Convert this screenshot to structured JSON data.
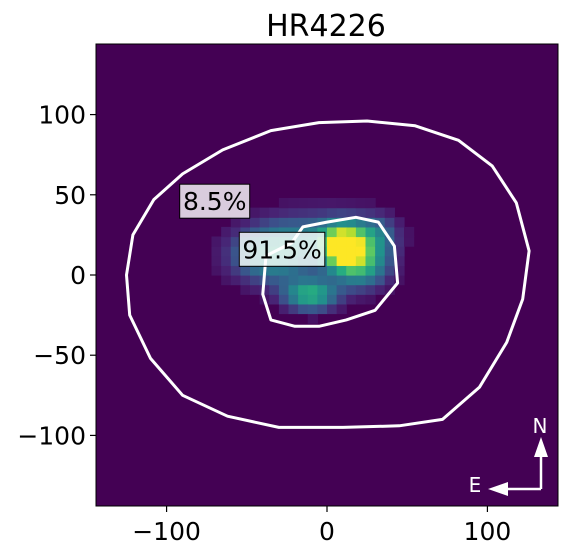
{
  "chart_data": {
    "type": "heatmap",
    "title": "HR4226",
    "xlabel": "",
    "ylabel": "",
    "xlim": [
      -144,
      144
    ],
    "ylim": [
      -144,
      144
    ],
    "x_ticks": [
      -100,
      0,
      100
    ],
    "y_ticks": [
      100,
      50,
      0,
      -50,
      -100
    ],
    "x_tick_labels": [
      "−100",
      "0",
      "100"
    ],
    "y_tick_labels": [
      "100",
      "50",
      "0",
      "−50",
      "−100"
    ],
    "colormap": "viridis",
    "colors": {
      "background": "#440154",
      "contour": "#ffffff",
      "peak": "#fde725"
    },
    "grid": false,
    "intensity_components": [
      {
        "x": 10,
        "y": 18,
        "sx": 9,
        "sy": 9,
        "amp": 1.0
      },
      {
        "x": 22,
        "y": 6,
        "sx": 12,
        "sy": 10,
        "amp": 0.55
      },
      {
        "x": -10,
        "y": -12,
        "sx": 12,
        "sy": 7,
        "amp": 0.62
      },
      {
        "x": -35,
        "y": 12,
        "sx": 18,
        "sy": 12,
        "amp": 0.5
      },
      {
        "x": -5,
        "y": 25,
        "sx": 26,
        "sy": 12,
        "amp": 0.3
      },
      {
        "x": 30,
        "y": 25,
        "sx": 10,
        "sy": 9,
        "amp": 0.3
      }
    ],
    "contours": [
      {
        "name": "outer",
        "points": [
          [
            -125,
            0
          ],
          [
            -121,
            25
          ],
          [
            -108,
            47
          ],
          [
            -90,
            63
          ],
          [
            -65,
            78
          ],
          [
            -35,
            90
          ],
          [
            -5,
            95
          ],
          [
            25,
            96
          ],
          [
            55,
            93
          ],
          [
            82,
            84
          ],
          [
            103,
            68
          ],
          [
            118,
            45
          ],
          [
            126,
            15
          ],
          [
            122,
            -15
          ],
          [
            112,
            -42
          ],
          [
            95,
            -70
          ],
          [
            72,
            -90
          ],
          [
            45,
            -94
          ],
          [
            10,
            -95
          ],
          [
            -30,
            -95
          ],
          [
            -62,
            -88
          ],
          [
            -90,
            -75
          ],
          [
            -110,
            -52
          ],
          [
            -123,
            -25
          ]
        ]
      },
      {
        "name": "inner",
        "points": [
          [
            -40,
            -12
          ],
          [
            -38,
            12
          ],
          [
            -22,
            20
          ],
          [
            -15,
            30
          ],
          [
            0,
            33
          ],
          [
            18,
            36
          ],
          [
            32,
            33
          ],
          [
            42,
            18
          ],
          [
            44,
            -5
          ],
          [
            30,
            -22
          ],
          [
            12,
            -28
          ],
          [
            -5,
            -32
          ],
          [
            -20,
            -32
          ],
          [
            -35,
            -28
          ]
        ]
      }
    ],
    "annotations": [
      {
        "text": "8.5%",
        "x": -70,
        "y": 46
      },
      {
        "text": "91.5%",
        "x": -28,
        "y": 16
      }
    ],
    "compass": {
      "north": "N",
      "east": "E"
    }
  }
}
